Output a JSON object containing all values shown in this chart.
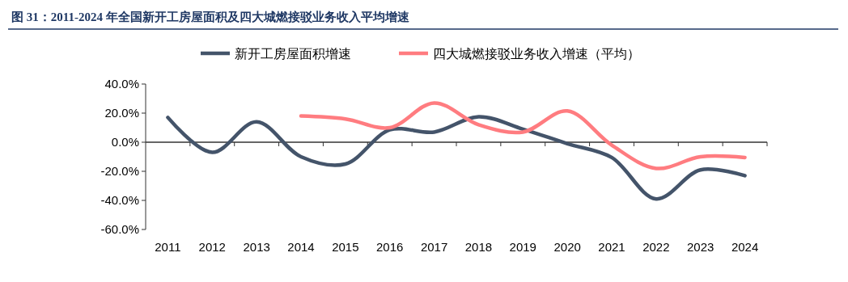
{
  "chart_data": {
    "type": "line",
    "title": "图 31：2011-2024 年全国新开工房屋面积及四大城燃接驳业务收入平均增速",
    "categories": [
      "2011",
      "2012",
      "2013",
      "2014",
      "2015",
      "2016",
      "2017",
      "2018",
      "2019",
      "2020",
      "2021",
      "2022",
      "2023",
      "2024"
    ],
    "series": [
      {
        "name": "新开工房屋面积增速",
        "color": "#44546a",
        "values": [
          17,
          -7,
          14,
          -10,
          -15,
          8.5,
          7,
          17.5,
          9,
          -1,
          -10.5,
          -39,
          -19,
          -23
        ]
      },
      {
        "name": "四大城燃接驳业务收入增速（平均）",
        "color": "#ff7c80",
        "values": [
          null,
          null,
          null,
          18,
          16,
          10,
          27,
          12,
          7,
          21.5,
          -2,
          -18,
          -10,
          -10.5
        ]
      }
    ],
    "ylim": [
      -60,
      40
    ],
    "yticks": [
      {
        "value": -60,
        "label": "-60.0%"
      },
      {
        "value": -40,
        "label": "-40.0%"
      },
      {
        "value": -20,
        "label": "-20.0%"
      },
      {
        "value": 0,
        "label": "0.0%"
      },
      {
        "value": 20,
        "label": "20.0%"
      },
      {
        "value": 40,
        "label": "40.0%"
      }
    ],
    "legend": "top",
    "marker": "none",
    "line_style": "solid"
  }
}
